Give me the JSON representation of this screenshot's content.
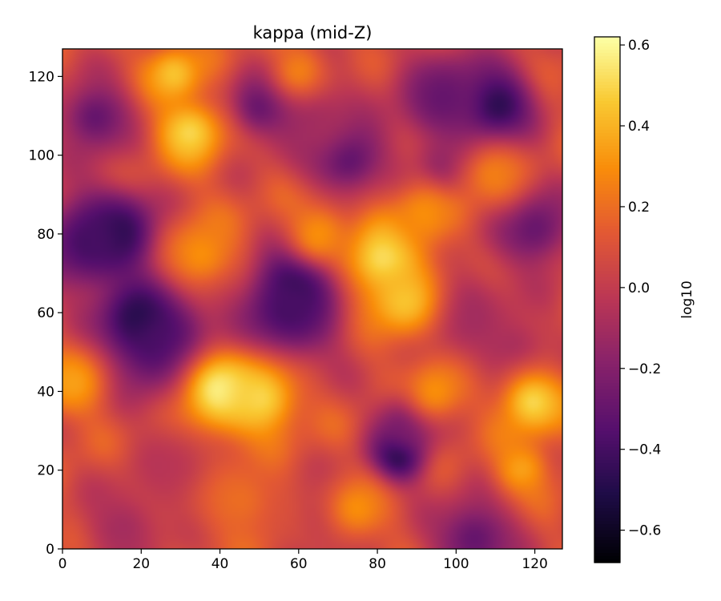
{
  "chart_data": {
    "type": "heatmap",
    "title": "kappa (mid-Z)",
    "xlabel": "",
    "ylabel": "",
    "colormap": "inferno",
    "colorbar_label": "log10",
    "xlim": [
      0,
      127
    ],
    "ylim": [
      0,
      127
    ],
    "x_ticks": [
      0,
      20,
      40,
      60,
      80,
      100,
      120
    ],
    "y_ticks": [
      0,
      20,
      40,
      60,
      80,
      100,
      120
    ],
    "x_tick_labels": [
      "0",
      "20",
      "40",
      "60",
      "80",
      "100",
      "120"
    ],
    "y_tick_labels": [
      "0",
      "20",
      "40",
      "60",
      "80",
      "100",
      "120"
    ],
    "colorbar_range": [
      -0.68,
      0.62
    ],
    "colorbar_ticks": [
      0.6,
      0.4,
      0.2,
      0.0,
      -0.2,
      -0.4,
      -0.6
    ],
    "colorbar_tick_labels": [
      "0.6",
      "0.4",
      "0.2",
      "0.0",
      "−0.2",
      "−0.4",
      "−0.6"
    ],
    "base_level": 0.1,
    "features": [
      {
        "x": 60,
        "y": 68,
        "value": -0.68,
        "radius": 6
      },
      {
        "x": 57,
        "y": 60,
        "value": -0.4,
        "radius": 10
      },
      {
        "x": 20,
        "y": 58,
        "value": -0.65,
        "radius": 7
      },
      {
        "x": 25,
        "y": 52,
        "value": -0.4,
        "radius": 10
      },
      {
        "x": 14,
        "y": 80,
        "value": -0.55,
        "radius": 7
      },
      {
        "x": 6,
        "y": 78,
        "value": -0.4,
        "radius": 9
      },
      {
        "x": 85,
        "y": 23,
        "value": -0.55,
        "radius": 5
      },
      {
        "x": 88,
        "y": 32,
        "value": -0.3,
        "radius": 6
      },
      {
        "x": 110,
        "y": 113,
        "value": -0.55,
        "radius": 7
      },
      {
        "x": 97,
        "y": 115,
        "value": -0.3,
        "radius": 9
      },
      {
        "x": 72,
        "y": 100,
        "value": -0.4,
        "radius": 7
      },
      {
        "x": 64,
        "y": 110,
        "value": -0.1,
        "radius": 9
      },
      {
        "x": 50,
        "y": 113,
        "value": -0.3,
        "radius": 6
      },
      {
        "x": 120,
        "y": 82,
        "value": -0.3,
        "radius": 8
      },
      {
        "x": 8,
        "y": 110,
        "value": -0.3,
        "radius": 7
      },
      {
        "x": 97,
        "y": 97,
        "value": -0.2,
        "radius": 5
      },
      {
        "x": 105,
        "y": 2,
        "value": -0.3,
        "radius": 8
      },
      {
        "x": 15,
        "y": 5,
        "value": -0.1,
        "radius": 8
      },
      {
        "x": 30,
        "y": 20,
        "value": -0.05,
        "radius": 9
      },
      {
        "x": 100,
        "y": 60,
        "value": -0.15,
        "radius": 9
      },
      {
        "x": 115,
        "y": 50,
        "value": -0.1,
        "radius": 8
      },
      {
        "x": 68,
        "y": 8,
        "value": -0.05,
        "radius": 9
      },
      {
        "x": 82,
        "y": 74,
        "value": 0.55,
        "radius": 7
      },
      {
        "x": 87,
        "y": 63,
        "value": 0.45,
        "radius": 7
      },
      {
        "x": 40,
        "y": 40,
        "value": 0.6,
        "radius": 7
      },
      {
        "x": 50,
        "y": 38,
        "value": 0.5,
        "radius": 7
      },
      {
        "x": 32,
        "y": 106,
        "value": 0.5,
        "radius": 6
      },
      {
        "x": 28,
        "y": 121,
        "value": 0.45,
        "radius": 5
      },
      {
        "x": 120,
        "y": 37,
        "value": 0.5,
        "radius": 6
      },
      {
        "x": 117,
        "y": 20,
        "value": 0.35,
        "radius": 5
      },
      {
        "x": 95,
        "y": 40,
        "value": 0.3,
        "radius": 6
      },
      {
        "x": 2,
        "y": 42,
        "value": 0.35,
        "radius": 6
      },
      {
        "x": 65,
        "y": 80,
        "value": 0.3,
        "radius": 6
      },
      {
        "x": 92,
        "y": 85,
        "value": 0.3,
        "radius": 6
      },
      {
        "x": 75,
        "y": 10,
        "value": 0.3,
        "radius": 6
      },
      {
        "x": 35,
        "y": 75,
        "value": 0.3,
        "radius": 7
      },
      {
        "x": 60,
        "y": 122,
        "value": 0.25,
        "radius": 5
      },
      {
        "x": 110,
        "y": 95,
        "value": 0.25,
        "radius": 6
      },
      {
        "x": 45,
        "y": 12,
        "value": 0.2,
        "radius": 8
      }
    ]
  }
}
